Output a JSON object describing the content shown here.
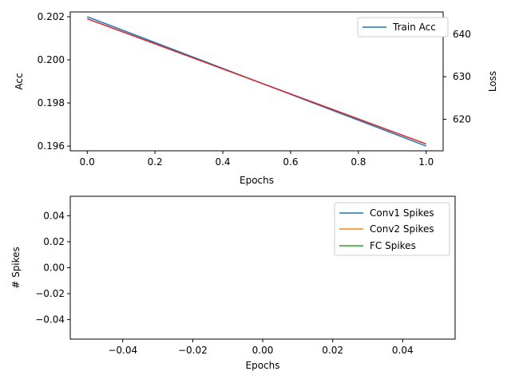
{
  "chart_data": [
    {
      "type": "line",
      "xlabel": "Epochs",
      "ylabel": "Acc",
      "y2label": "Loss",
      "xlim": [
        -0.05,
        1.05
      ],
      "ylim": [
        0.19578,
        0.20222
      ],
      "y2lim": [
        612.6,
        645.2
      ],
      "xticks": [
        "0.0",
        "0.2",
        "0.4",
        "0.6",
        "0.8",
        "1.0"
      ],
      "yticks": [
        "0.196",
        "0.198",
        "0.200",
        "0.202"
      ],
      "y2ticks": [
        "620",
        "630",
        "640"
      ],
      "legend_position": "top-right",
      "series": [
        {
          "name": "Train Acc",
          "axis": "left",
          "color": "#1f77b4",
          "x": [
            0,
            1
          ],
          "y": [
            0.202,
            0.196
          ]
        },
        {
          "axis": "right",
          "color": "#d62728",
          "x": [
            0,
            1
          ],
          "y": [
            643.6,
            614.2
          ]
        }
      ]
    },
    {
      "type": "line",
      "xlabel": "Epochs",
      "ylabel": "# Spikes",
      "xlim": [
        -0.055,
        0.055
      ],
      "ylim": [
        -0.055,
        0.055
      ],
      "xticks": [
        "−0.04",
        "−0.02",
        "0.00",
        "0.02",
        "0.04"
      ],
      "yticks": [
        "−0.04",
        "−0.02",
        "0.00",
        "0.02",
        "0.04"
      ],
      "legend_position": "top-right",
      "series": [
        {
          "name": "Conv1 Spikes",
          "color": "#1f77b4",
          "x": [],
          "y": []
        },
        {
          "name": "Conv2 Spikes",
          "color": "#ff7f0e",
          "x": [],
          "y": []
        },
        {
          "name": "FC Spikes",
          "color": "#2ca02c",
          "x": [],
          "y": []
        }
      ]
    }
  ]
}
